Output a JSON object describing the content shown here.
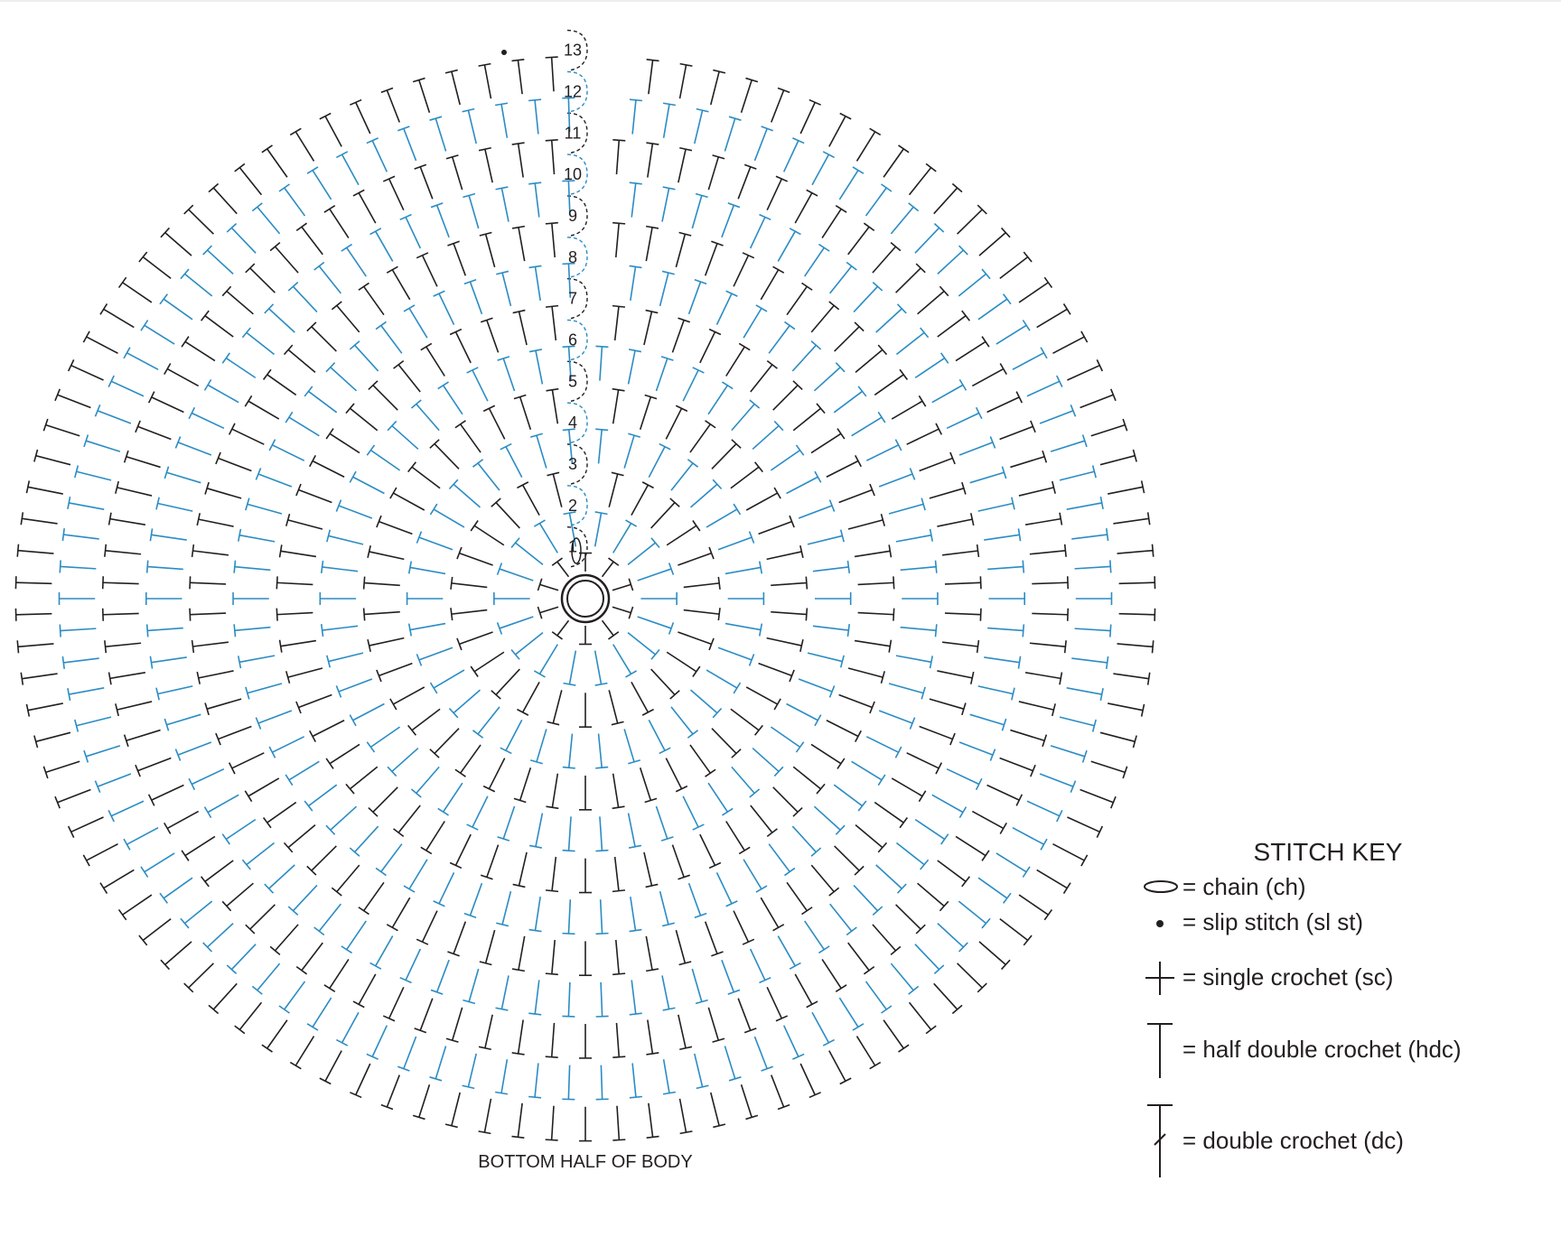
{
  "rounds": {
    "labels": [
      "1",
      "2",
      "3",
      "4",
      "5",
      "6",
      "7",
      "8",
      "9",
      "10",
      "11",
      "12",
      "13"
    ]
  },
  "caption": "BOTTOM HALF OF BODY",
  "key": {
    "title": "STITCH KEY",
    "items": [
      "= chain (ch)",
      "= slip stitch (sl st)",
      "= single crochet (sc)",
      "= half double crochet (hdc)",
      "= double crochet (dc)"
    ]
  }
}
